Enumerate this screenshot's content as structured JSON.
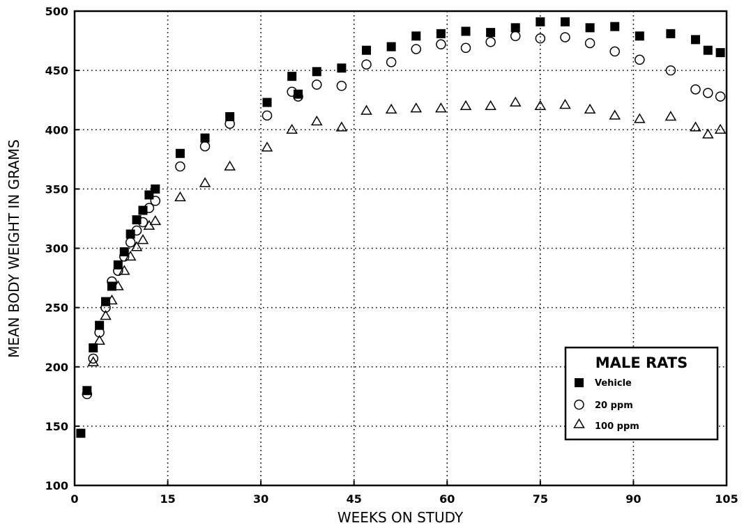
{
  "chart_data": {
    "type": "scatter",
    "title": "",
    "xlabel": "WEEKS ON STUDY",
    "ylabel": "MEAN BODY WEIGHT IN GRAMS",
    "xlim": [
      0,
      105
    ],
    "ylim": [
      100,
      500
    ],
    "xticks": [
      0,
      15,
      30,
      45,
      60,
      75,
      90,
      105
    ],
    "yticks": [
      100,
      150,
      200,
      250,
      300,
      350,
      400,
      450,
      500
    ],
    "grid": true,
    "legend": {
      "title": "MALE RATS",
      "placement": "bottom-right"
    },
    "series": [
      {
        "name": "Vehicle",
        "marker": "filled-square",
        "points": [
          [
            1,
            144
          ],
          [
            2,
            180
          ],
          [
            3,
            216
          ],
          [
            4,
            235
          ],
          [
            5,
            255
          ],
          [
            6,
            268
          ],
          [
            7,
            286
          ],
          [
            8,
            297
          ],
          [
            9,
            312
          ],
          [
            10,
            324
          ],
          [
            11,
            332
          ],
          [
            12,
            345
          ],
          [
            13,
            350
          ],
          [
            17,
            380
          ],
          [
            21,
            393
          ],
          [
            25,
            411
          ],
          [
            31,
            423
          ],
          [
            35,
            445
          ],
          [
            36,
            430
          ],
          [
            39,
            449
          ],
          [
            43,
            452
          ],
          [
            47,
            467
          ],
          [
            51,
            470
          ],
          [
            55,
            479
          ],
          [
            59,
            481
          ],
          [
            63,
            483
          ],
          [
            67,
            482
          ],
          [
            71,
            486
          ],
          [
            75,
            491
          ],
          [
            79,
            491
          ],
          [
            83,
            486
          ],
          [
            87,
            487
          ],
          [
            91,
            479
          ],
          [
            96,
            481
          ],
          [
            100,
            476
          ],
          [
            102,
            467
          ],
          [
            104,
            465
          ]
        ]
      },
      {
        "name": "20 ppm",
        "marker": "open-circle",
        "points": [
          [
            2,
            177
          ],
          [
            3,
            207
          ],
          [
            4,
            229
          ],
          [
            5,
            250
          ],
          [
            6,
            272
          ],
          [
            7,
            281
          ],
          [
            8,
            293
          ],
          [
            9,
            305
          ],
          [
            10,
            315
          ],
          [
            11,
            322
          ],
          [
            12,
            334
          ],
          [
            13,
            340
          ],
          [
            17,
            369
          ],
          [
            21,
            386
          ],
          [
            25,
            405
          ],
          [
            31,
            412
          ],
          [
            35,
            432
          ],
          [
            36,
            428
          ],
          [
            39,
            438
          ],
          [
            43,
            437
          ],
          [
            47,
            455
          ],
          [
            51,
            457
          ],
          [
            55,
            468
          ],
          [
            59,
            472
          ],
          [
            63,
            469
          ],
          [
            67,
            474
          ],
          [
            71,
            479
          ],
          [
            75,
            477
          ],
          [
            79,
            478
          ],
          [
            83,
            473
          ],
          [
            87,
            466
          ],
          [
            91,
            459
          ],
          [
            96,
            450
          ],
          [
            100,
            434
          ],
          [
            102,
            431
          ],
          [
            104,
            428
          ]
        ]
      },
      {
        "name": "100 ppm",
        "marker": "open-triangle",
        "points": [
          [
            3,
            204
          ],
          [
            4,
            222
          ],
          [
            5,
            243
          ],
          [
            6,
            256
          ],
          [
            7,
            268
          ],
          [
            8,
            281
          ],
          [
            9,
            293
          ],
          [
            10,
            301
          ],
          [
            11,
            307
          ],
          [
            12,
            319
          ],
          [
            13,
            323
          ],
          [
            17,
            343
          ],
          [
            21,
            355
          ],
          [
            25,
            369
          ],
          [
            31,
            385
          ],
          [
            35,
            400
          ],
          [
            39,
            407
          ],
          [
            43,
            402
          ],
          [
            47,
            416
          ],
          [
            51,
            417
          ],
          [
            55,
            418
          ],
          [
            59,
            418
          ],
          [
            63,
            420
          ],
          [
            67,
            420
          ],
          [
            71,
            423
          ],
          [
            75,
            420
          ],
          [
            79,
            421
          ],
          [
            83,
            417
          ],
          [
            87,
            412
          ],
          [
            91,
            409
          ],
          [
            96,
            411
          ],
          [
            100,
            402
          ],
          [
            102,
            396
          ],
          [
            104,
            400
          ]
        ]
      }
    ]
  }
}
